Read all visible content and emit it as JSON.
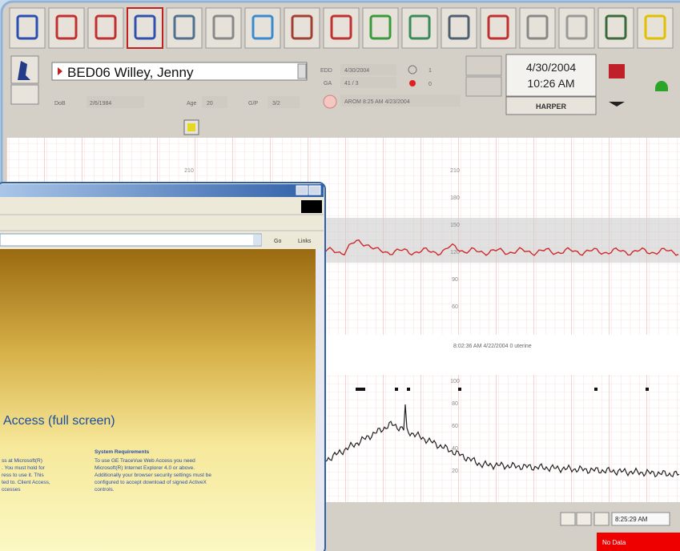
{
  "header": {
    "patient": "BED06  Willey, Jenny",
    "dob_label": "DoB",
    "dob": "2/6/1984",
    "age_label": "Age",
    "age": "20",
    "gp_label": "G/P",
    "gp": "3/2",
    "edd_label": "EDD",
    "edd": "4/30/2004",
    "ga_label": "GA",
    "ga": "41 / 3",
    "alarm_count_1": "1",
    "alarm_count_2": "0",
    "event": "AROM 8:25 AM 4/23/2004",
    "date": "4/30/2004",
    "time": "10:26 AM",
    "user": "HARPER"
  },
  "strip": {
    "fhr_scale_left": [
      "210"
    ],
    "fhr_scale_right": [
      "210",
      "180",
      "150",
      "120",
      "90",
      "60"
    ],
    "toco_scale": [
      "100",
      "80",
      "60",
      "40",
      "20"
    ],
    "annotation": "8:02:36 AM 4/22/2004  0 uterine"
  },
  "browser": {
    "heading": "Access (full screen)",
    "left_text": [
      "ss at Microsoft(R)",
      ". You must hold for",
      "ress to use it. This",
      "ted to. Client Access,",
      "ccesses"
    ],
    "req_title": "System Requirements",
    "right_text": [
      "To use GE TraceVue Web Access you need",
      "Microsoft(R) Internet Explorer 4.0 or above.",
      "Additionally your browser security settings must be",
      "configured to accept download of signed ActiveX",
      "controls."
    ],
    "go": "Go",
    "links": "Links"
  },
  "status": {
    "time": "8:25:29 AM",
    "no_data": "No Data"
  }
}
